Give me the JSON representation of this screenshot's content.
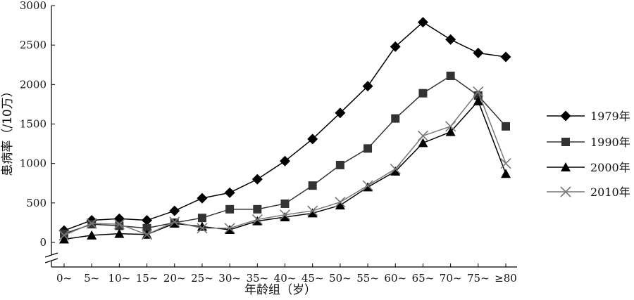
{
  "chart_data": {
    "type": "line",
    "categories": [
      "0~",
      "5~",
      "10~",
      "15~",
      "20~",
      "25~",
      "30~",
      "35~",
      "40~",
      "45~",
      "50~",
      "55~",
      "60~",
      "65~",
      "70~",
      "75~",
      "≥80"
    ],
    "xlabel": "年龄组（岁）",
    "ylabel": "患病率（/10万）",
    "ylim": [
      0,
      3000
    ],
    "yticks": [
      0,
      500,
      1000,
      1500,
      2000,
      2500,
      3000
    ],
    "grid": false,
    "legend_position": "right",
    "series": [
      {
        "name": "1979年",
        "marker": "diamond",
        "color": "#000000",
        "values": [
          150,
          280,
          300,
          280,
          400,
          560,
          630,
          800,
          1030,
          1310,
          1640,
          1980,
          2480,
          2790,
          2570,
          2400,
          2350
        ]
      },
      {
        "name": "1990年",
        "marker": "square",
        "color": "#333333",
        "values": [
          110,
          230,
          210,
          180,
          250,
          310,
          420,
          420,
          490,
          720,
          980,
          1190,
          1570,
          1890,
          2110,
          1860,
          1470
        ]
      },
      {
        "name": "2000年",
        "marker": "triangle",
        "color": "#000000",
        "values": [
          40,
          90,
          110,
          100,
          240,
          200,
          160,
          270,
          320,
          370,
          470,
          700,
          900,
          1260,
          1400,
          1790,
          870
        ]
      },
      {
        "name": "2010年",
        "marker": "x",
        "color": "#777777",
        "values": [
          90,
          240,
          230,
          100,
          260,
          180,
          180,
          290,
          350,
          400,
          510,
          720,
          930,
          1350,
          1470,
          1910,
          1000
        ]
      }
    ]
  }
}
